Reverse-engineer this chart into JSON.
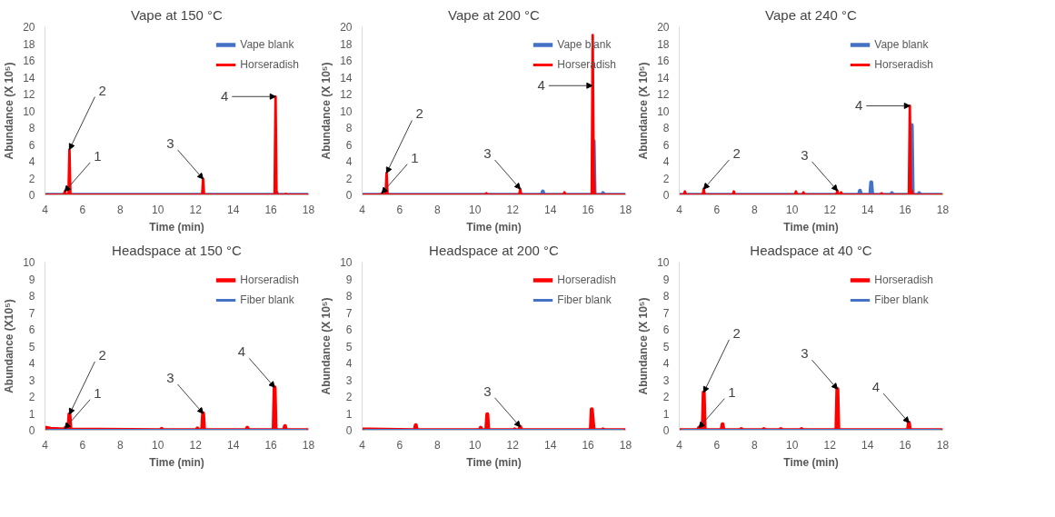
{
  "chart_data": [
    {
      "type": "line",
      "title": "Vape at 150 °C",
      "xlabel": "Time (min)",
      "ylabel": "Abundance (X 10⁵)",
      "xlim": [
        4,
        18
      ],
      "xticks": [
        4,
        6,
        8,
        10,
        12,
        14,
        16,
        18
      ],
      "ylim": [
        0,
        20
      ],
      "yticks": [
        0,
        2,
        4,
        6,
        8,
        10,
        12,
        14,
        16,
        18,
        20
      ],
      "grid": false,
      "legend": "top right",
      "series": [
        {
          "name": "Vape blank",
          "color": "#4472c4",
          "x": [
            4,
            16.25,
            16.3,
            16.35,
            18
          ],
          "values": [
            0,
            0,
            0.3,
            0,
            0
          ]
        },
        {
          "name": "Horseradish",
          "color": "#ff0000",
          "x": [
            4,
            5.0,
            5.05,
            5.1,
            5.25,
            5.3,
            5.35,
            12.35,
            12.4,
            12.45,
            16.2,
            16.25,
            16.3,
            16.75,
            16.8,
            16.85,
            18
          ],
          "values": [
            0,
            0,
            0.4,
            0,
            0,
            5.4,
            0,
            0,
            1.9,
            0,
            0,
            11.7,
            0,
            0,
            0.1,
            0,
            0
          ]
        }
      ],
      "annotations": [
        {
          "text": "1",
          "x": 5.05,
          "y": 0.4
        },
        {
          "text": "2",
          "x": 5.3,
          "y": 5.4
        },
        {
          "text": "3",
          "x": 12.4,
          "y": 1.9
        },
        {
          "text": "4",
          "x": 16.25,
          "y": 11.7
        }
      ]
    },
    {
      "type": "line",
      "title": "Vape at 200 °C",
      "xlabel": "Time (min)",
      "ylabel": "Abundance (X 10⁵)",
      "xlim": [
        4,
        18
      ],
      "xticks": [
        4,
        6,
        8,
        10,
        12,
        14,
        16,
        18
      ],
      "ylim": [
        0,
        20
      ],
      "yticks": [
        0,
        2,
        4,
        6,
        8,
        10,
        12,
        14,
        16,
        18,
        20
      ],
      "grid": false,
      "legend": "top right",
      "series": [
        {
          "name": "Vape blank",
          "color": "#4472c4",
          "x": [
            4,
            13.55,
            13.6,
            13.65,
            16.25,
            16.3,
            16.35,
            16.75,
            16.8,
            16.85,
            18
          ],
          "values": [
            0,
            0,
            0.4,
            0,
            0,
            6.4,
            0,
            0,
            0.2,
            0,
            0
          ]
        },
        {
          "name": "Horseradish",
          "color": "#ff0000",
          "x": [
            4,
            5.0,
            5.05,
            5.1,
            5.25,
            5.3,
            5.35,
            10.55,
            10.6,
            10.65,
            12.35,
            12.4,
            12.45,
            14.7,
            14.75,
            14.8,
            16.2,
            16.25,
            16.3,
            16.35,
            18
          ],
          "values": [
            0,
            0,
            0.2,
            0,
            0,
            2.6,
            0,
            0,
            0.2,
            0,
            0,
            0.7,
            0,
            0,
            0.3,
            0,
            0,
            19.0,
            2.7,
            0,
            0
          ]
        }
      ],
      "annotations": [
        {
          "text": "1",
          "x": 5.05,
          "y": 0.2
        },
        {
          "text": "2",
          "x": 5.3,
          "y": 2.6
        },
        {
          "text": "3",
          "x": 12.4,
          "y": 0.7
        },
        {
          "text": "4",
          "x": 16.23,
          "y": 13.0
        }
      ]
    },
    {
      "type": "line",
      "title": "Vape at 240 °C",
      "xlabel": "Time (min)",
      "ylabel": "Abundance (X 10⁵)",
      "xlim": [
        4,
        18
      ],
      "xticks": [
        4,
        6,
        8,
        10,
        12,
        14,
        16,
        18
      ],
      "ylim": [
        0,
        20
      ],
      "yticks": [
        0,
        2,
        4,
        6,
        8,
        10,
        12,
        14,
        16,
        18,
        20
      ],
      "grid": false,
      "legend": "top right",
      "series": [
        {
          "name": "Vape blank",
          "color": "#4472c4",
          "x": [
            4,
            13.55,
            13.6,
            13.65,
            14.15,
            14.2,
            14.25,
            15.25,
            15.3,
            15.35,
            16.3,
            16.35,
            16.4,
            16.7,
            16.75,
            16.8,
            18
          ],
          "values": [
            0,
            0,
            0.5,
            0,
            0,
            1.5,
            0,
            0,
            0.2,
            0,
            0,
            8.3,
            0,
            0,
            0.2,
            0,
            0
          ]
        },
        {
          "name": "Horseradish",
          "color": "#ff0000",
          "x": [
            4,
            4.25,
            4.3,
            4.35,
            5.25,
            5.3,
            5.35,
            6.85,
            6.9,
            6.95,
            10.15,
            10.2,
            10.25,
            10.55,
            10.6,
            10.65,
            12.35,
            12.4,
            12.45,
            12.55,
            12.6,
            12.65,
            14.7,
            14.75,
            14.8,
            16.2,
            16.25,
            16.3,
            16.35,
            16.4,
            18
          ],
          "values": [
            0,
            0,
            0.4,
            0,
            0,
            0.7,
            0,
            0,
            0.4,
            0,
            0,
            0.4,
            0,
            0,
            0.3,
            0,
            0,
            0.5,
            0,
            0,
            0.3,
            0,
            0,
            0.2,
            0,
            0,
            10.6,
            0,
            0.5,
            0,
            0
          ]
        }
      ],
      "annotations": [
        {
          "text": "2",
          "x": 5.3,
          "y": 0.7
        },
        {
          "text": "3",
          "x": 12.4,
          "y": 0.5
        },
        {
          "text": "4",
          "x": 16.25,
          "y": 10.6
        }
      ]
    },
    {
      "type": "line",
      "title": "Headspace at 150 °C",
      "xlabel": "Time (min)",
      "ylabel": "Abundance (X10⁵)",
      "xlim": [
        4,
        18
      ],
      "xticks": [
        4,
        6,
        8,
        10,
        12,
        14,
        16,
        18
      ],
      "ylim": [
        0,
        10
      ],
      "yticks": [
        0,
        1,
        2,
        3,
        4,
        5,
        6,
        7,
        8,
        9,
        10
      ],
      "grid": false,
      "legend": "top right",
      "series": [
        {
          "name": "Horseradish",
          "color": "#ff0000",
          "x": [
            4,
            4.3,
            5.0,
            5.05,
            5.1,
            5.25,
            5.3,
            5.35,
            10.15,
            10.2,
            10.25,
            12.05,
            12.1,
            12.15,
            12.35,
            12.4,
            12.45,
            14.7,
            14.75,
            14.8,
            16.15,
            16.2,
            16.25,
            16.7,
            16.75,
            16.8,
            18
          ],
          "values": [
            0.15,
            0.08,
            0.05,
            0.1,
            0.05,
            0.05,
            0.95,
            0.05,
            0,
            0.08,
            0,
            0,
            0.1,
            0,
            0,
            1.0,
            0,
            0,
            0.15,
            0,
            0,
            2.55,
            0,
            0,
            0.25,
            0,
            0
          ]
        },
        {
          "name": "Fiber blank",
          "color": "#4472c4",
          "x": [
            4.1,
            17.9
          ],
          "values": [
            0,
            0
          ]
        }
      ],
      "annotations": [
        {
          "text": "1",
          "x": 5.05,
          "y": 0.1
        },
        {
          "text": "2",
          "x": 5.3,
          "y": 0.95
        },
        {
          "text": "3",
          "x": 12.4,
          "y": 1.0
        },
        {
          "text": "4",
          "x": 16.2,
          "y": 2.55
        }
      ]
    },
    {
      "type": "line",
      "title": "Headspace at 200 °C",
      "xlabel": "Time (min)",
      "ylabel": "Abundance (X 10⁵)",
      "xlim": [
        4,
        18
      ],
      "xticks": [
        4,
        6,
        8,
        10,
        12,
        14,
        16,
        18
      ],
      "ylim": [
        0,
        10
      ],
      "yticks": [
        0,
        1,
        2,
        3,
        4,
        5,
        6,
        7,
        8,
        9,
        10
      ],
      "grid": false,
      "legend": "top right",
      "series": [
        {
          "name": "Horseradish",
          "color": "#ff0000",
          "x": [
            4,
            4.3,
            6.8,
            6.85,
            6.9,
            10.25,
            10.3,
            10.35,
            10.6,
            10.65,
            10.7,
            12.05,
            12.1,
            12.15,
            12.35,
            12.4,
            12.45,
            16.15,
            16.2,
            16.3,
            16.75,
            16.8,
            16.85,
            18
          ],
          "values": [
            0.05,
            0.05,
            0,
            0.3,
            0,
            0,
            0.15,
            0,
            0,
            0.95,
            0,
            0,
            0.05,
            0,
            0,
            0.2,
            0,
            0,
            1.25,
            0,
            0,
            0.05,
            0,
            0
          ]
        },
        {
          "name": "Fiber blank",
          "color": "#4472c4",
          "x": [
            4.1,
            17.9
          ],
          "values": [
            0,
            0
          ]
        }
      ],
      "annotations": [
        {
          "text": "3",
          "x": 12.4,
          "y": 0.2
        }
      ]
    },
    {
      "type": "line",
      "title": "Headspace at 40 °C",
      "xlabel": "Time (min)",
      "ylabel": "Abundance (X 10⁵)",
      "xlim": [
        4,
        18
      ],
      "xticks": [
        4,
        6,
        8,
        10,
        12,
        14,
        16,
        18
      ],
      "ylim": [
        0,
        10
      ],
      "yticks": [
        0,
        1,
        2,
        3,
        4,
        5,
        6,
        7,
        8,
        9,
        10
      ],
      "grid": false,
      "legend": "top right",
      "series": [
        {
          "name": "Horseradish",
          "color": "#ff0000",
          "x": [
            4,
            5.0,
            5.05,
            5.1,
            5.25,
            5.3,
            5.35,
            6.25,
            6.3,
            6.35,
            7.25,
            7.3,
            7.35,
            8.45,
            8.5,
            8.55,
            9.35,
            9.4,
            9.45,
            10.45,
            10.5,
            10.55,
            12.35,
            12.4,
            12.45,
            16.15,
            16.2,
            16.25,
            18
          ],
          "values": [
            0,
            0,
            0.15,
            0,
            0,
            2.25,
            0,
            0,
            0.35,
            0,
            0,
            0.07,
            0,
            0,
            0.07,
            0,
            0,
            0.07,
            0,
            0,
            0.07,
            0,
            0,
            2.45,
            0,
            0,
            0.45,
            0,
            0
          ]
        },
        {
          "name": "Fiber blank",
          "color": "#4472c4",
          "x": [
            4.1,
            17.9
          ],
          "values": [
            0,
            0
          ]
        }
      ],
      "annotations": [
        {
          "text": "1",
          "x": 5.05,
          "y": 0.15
        },
        {
          "text": "2",
          "x": 5.3,
          "y": 2.25
        },
        {
          "text": "3",
          "x": 12.4,
          "y": 2.45
        },
        {
          "text": "4",
          "x": 16.2,
          "y": 0.45
        }
      ]
    }
  ]
}
